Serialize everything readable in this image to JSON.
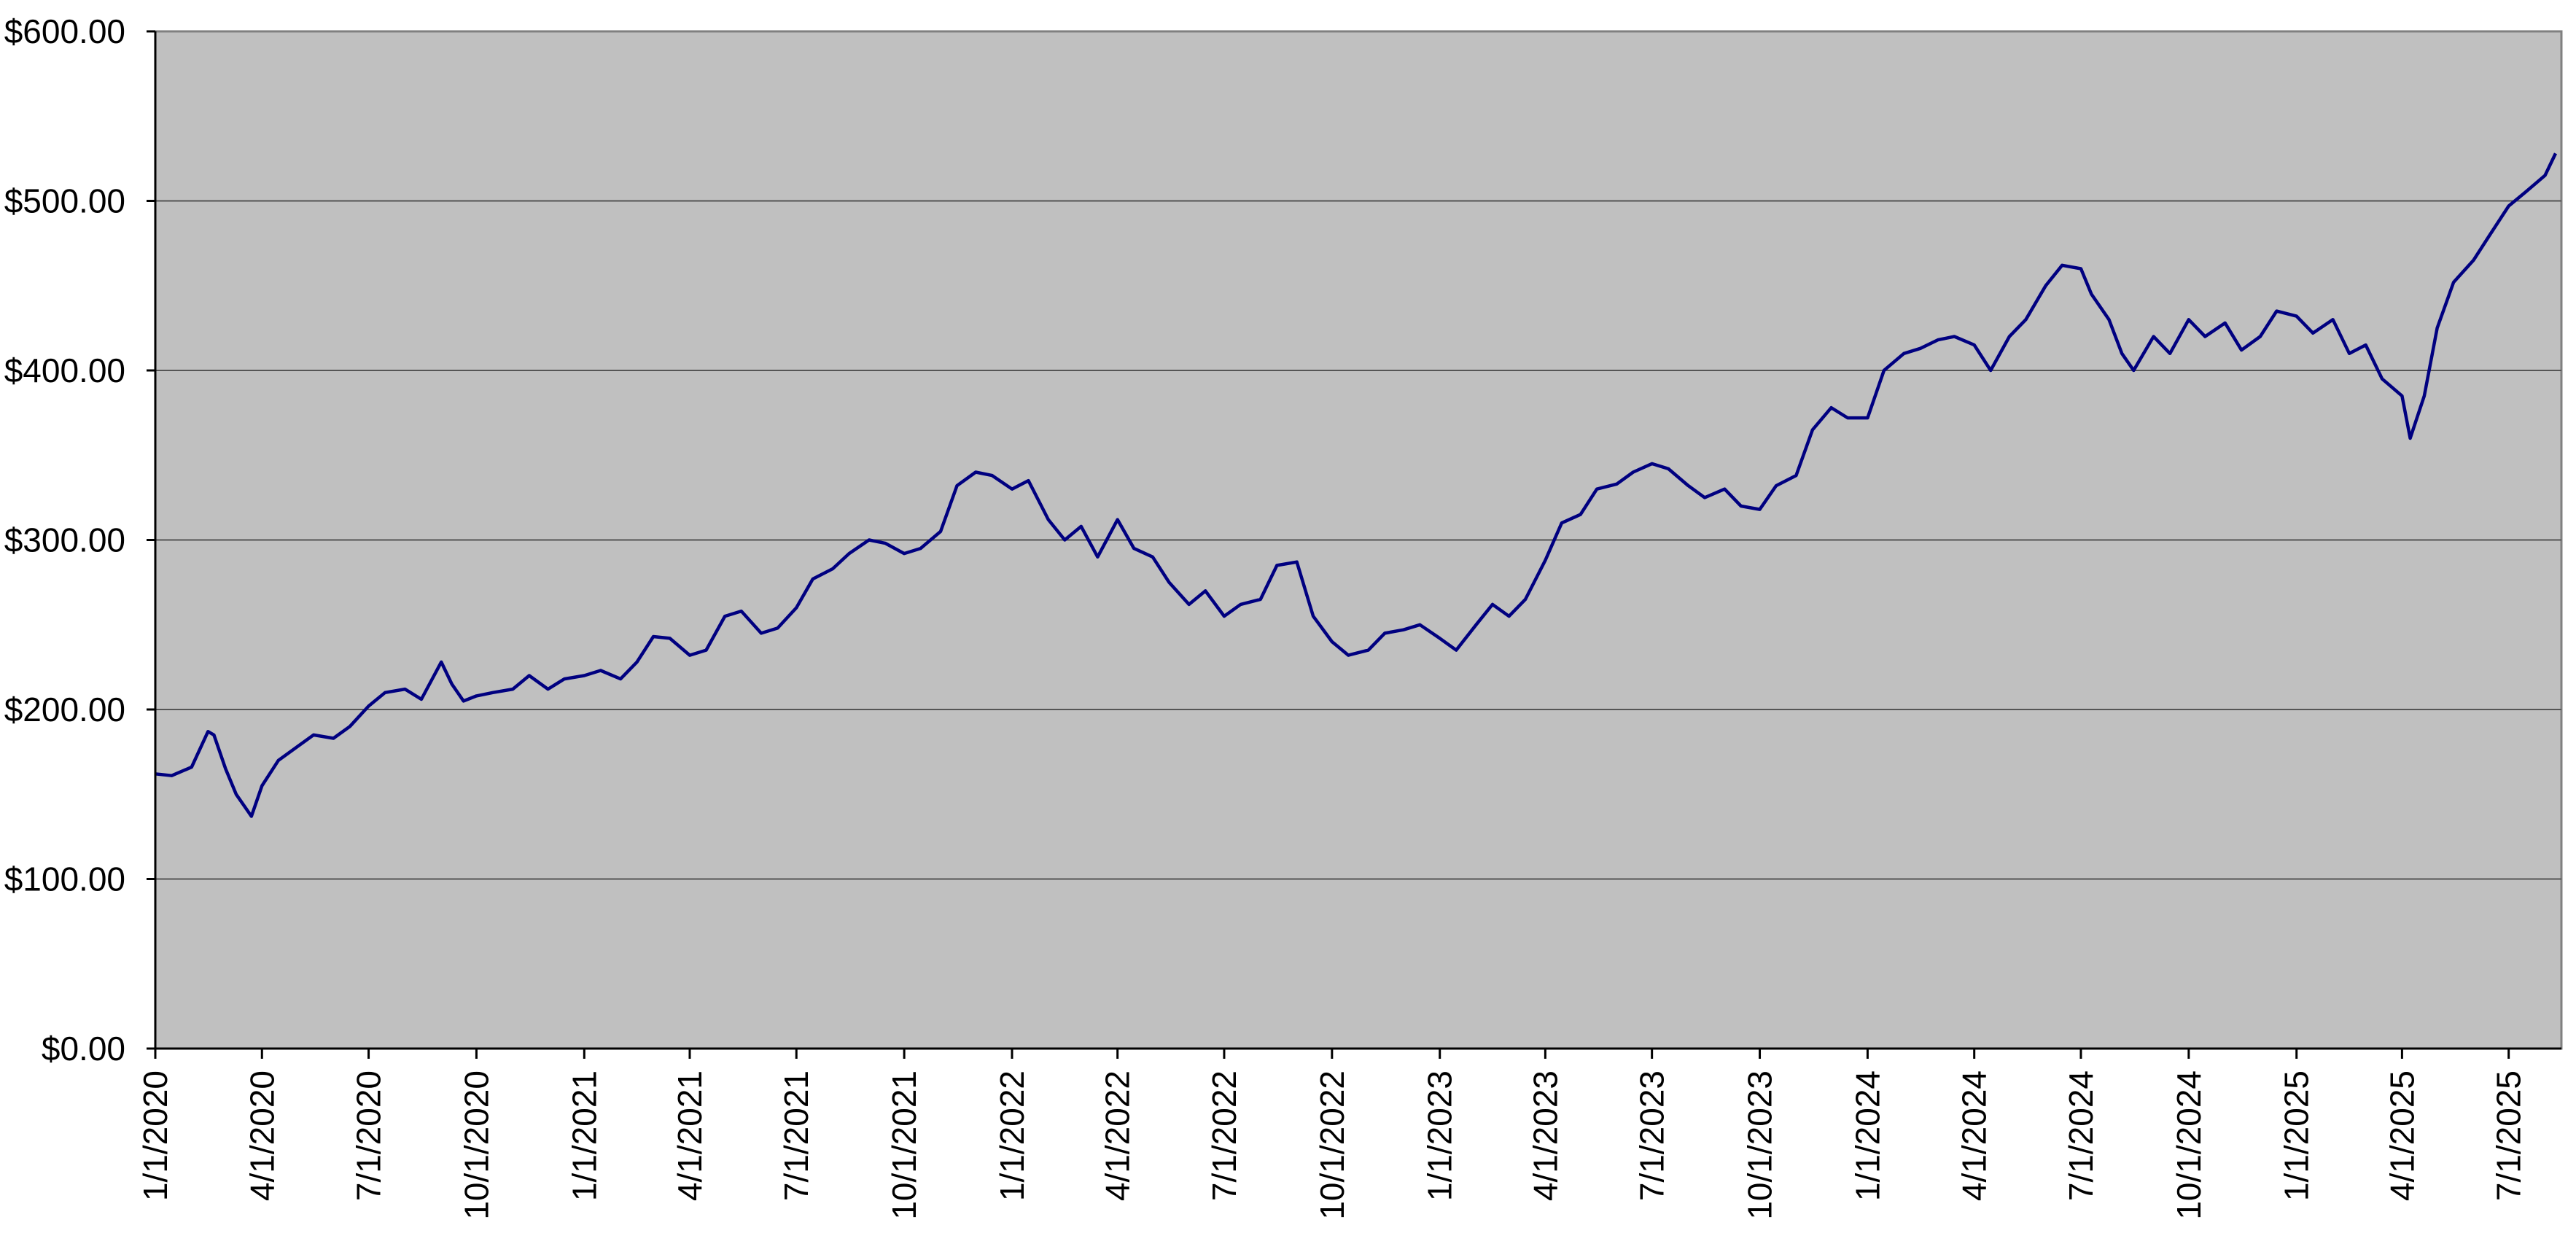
{
  "chart_data": {
    "type": "line",
    "title": "",
    "xlabel": "",
    "ylabel": "",
    "y_tick_labels": [
      "$0.00",
      "$100.00",
      "$200.00",
      "$300.00",
      "$400.00",
      "$500.00",
      "$600.00"
    ],
    "y_ticks": [
      0,
      100,
      200,
      300,
      400,
      500,
      600
    ],
    "ylim": [
      0,
      600
    ],
    "x_tick_labels": [
      "1/1/2020",
      "4/1/2020",
      "7/1/2020",
      "10/1/2020",
      "1/1/2021",
      "4/1/2021",
      "7/1/2021",
      "10/1/2021",
      "1/1/2022",
      "4/1/2022",
      "7/1/2022",
      "10/1/2022",
      "1/1/2023",
      "4/1/2023",
      "7/1/2023",
      "10/1/2023",
      "1/1/2024",
      "4/1/2024",
      "7/1/2024",
      "10/1/2024",
      "1/1/2025",
      "4/1/2025",
      "7/1/2025"
    ],
    "xlim": [
      "2020-01-01",
      "2025-08-15"
    ],
    "grid": "horizontal",
    "legend": "none",
    "colors": {
      "plot_background": "#c0c0c0",
      "line": "#000080",
      "gridline": "#555555"
    },
    "series": [
      {
        "x": [
          "2020-01-01",
          "2020-01-15",
          "2020-02-01",
          "2020-02-15",
          "2020-02-20",
          "2020-03-01",
          "2020-03-10",
          "2020-03-20",
          "2020-03-23",
          "2020-04-01",
          "2020-04-15",
          "2020-05-01",
          "2020-05-15",
          "2020-06-01",
          "2020-06-15",
          "2020-07-01",
          "2020-07-15",
          "2020-08-01",
          "2020-08-15",
          "2020-09-01",
          "2020-09-10",
          "2020-09-20",
          "2020-10-01",
          "2020-10-15",
          "2020-11-01",
          "2020-11-15",
          "2020-12-01",
          "2020-12-15",
          "2021-01-01",
          "2021-01-15",
          "2021-02-01",
          "2021-02-15",
          "2021-03-01",
          "2021-03-15",
          "2021-04-01",
          "2021-04-15",
          "2021-05-01",
          "2021-05-15",
          "2021-06-01",
          "2021-06-15",
          "2021-07-01",
          "2021-07-15",
          "2021-08-01",
          "2021-08-15",
          "2021-09-01",
          "2021-09-15",
          "2021-10-01",
          "2021-10-15",
          "2021-11-01",
          "2021-11-15",
          "2021-12-01",
          "2021-12-15",
          "2022-01-01",
          "2022-01-15",
          "2022-02-01",
          "2022-02-15",
          "2022-03-01",
          "2022-03-15",
          "2022-04-01",
          "2022-04-15",
          "2022-05-01",
          "2022-05-15",
          "2022-06-01",
          "2022-06-15",
          "2022-07-01",
          "2022-07-15",
          "2022-08-01",
          "2022-08-15",
          "2022-09-01",
          "2022-09-15",
          "2022-10-01",
          "2022-10-15",
          "2022-11-01",
          "2022-11-15",
          "2022-12-01",
          "2022-12-15",
          "2023-01-01",
          "2023-01-15",
          "2023-02-01",
          "2023-02-15",
          "2023-03-01",
          "2023-03-15",
          "2023-04-01",
          "2023-04-15",
          "2023-05-01",
          "2023-05-15",
          "2023-06-01",
          "2023-06-15",
          "2023-07-01",
          "2023-07-15",
          "2023-08-01",
          "2023-08-15",
          "2023-09-01",
          "2023-09-15",
          "2023-10-01",
          "2023-10-15",
          "2023-11-01",
          "2023-11-15",
          "2023-12-01",
          "2023-12-15",
          "2024-01-01",
          "2024-01-15",
          "2024-02-01",
          "2024-02-15",
          "2024-03-01",
          "2024-03-15",
          "2024-04-01",
          "2024-04-15",
          "2024-05-01",
          "2024-05-15",
          "2024-06-01",
          "2024-06-15",
          "2024-07-01",
          "2024-07-10",
          "2024-07-25",
          "2024-08-05",
          "2024-08-15",
          "2024-09-01",
          "2024-09-15",
          "2024-10-01",
          "2024-10-15",
          "2024-11-01",
          "2024-11-15",
          "2024-12-01",
          "2024-12-15",
          "2025-01-01",
          "2025-01-15",
          "2025-02-01",
          "2025-02-15",
          "2025-03-01",
          "2025-03-15",
          "2025-04-01",
          "2025-04-08",
          "2025-04-20",
          "2025-05-01",
          "2025-05-15",
          "2025-06-01",
          "2025-06-15",
          "2025-07-01",
          "2025-07-15",
          "2025-08-01",
          "2025-08-10"
        ],
        "values": [
          162,
          161,
          166,
          187,
          185,
          165,
          150,
          140,
          137,
          155,
          170,
          178,
          185,
          183,
          190,
          202,
          210,
          212,
          206,
          228,
          215,
          205,
          208,
          210,
          212,
          220,
          212,
          218,
          220,
          223,
          218,
          228,
          243,
          242,
          232,
          235,
          255,
          258,
          245,
          248,
          260,
          277,
          283,
          292,
          300,
          298,
          292,
          295,
          305,
          332,
          340,
          338,
          330,
          335,
          312,
          300,
          308,
          290,
          312,
          295,
          290,
          275,
          262,
          270,
          255,
          262,
          265,
          285,
          287,
          255,
          240,
          232,
          235,
          245,
          247,
          250,
          242,
          235,
          250,
          262,
          255,
          265,
          288,
          310,
          315,
          330,
          333,
          340,
          345,
          342,
          332,
          325,
          330,
          320,
          318,
          332,
          338,
          365,
          378,
          372,
          372,
          400,
          410,
          413,
          418,
          420,
          415,
          400,
          420,
          430,
          450,
          462,
          460,
          445,
          430,
          410,
          400,
          420,
          410,
          430,
          420,
          428,
          412,
          420,
          435,
          432,
          422,
          430,
          410,
          415,
          395,
          385,
          360,
          385,
          425,
          452,
          465,
          480,
          497,
          505,
          515,
          528
        ]
      }
    ]
  }
}
